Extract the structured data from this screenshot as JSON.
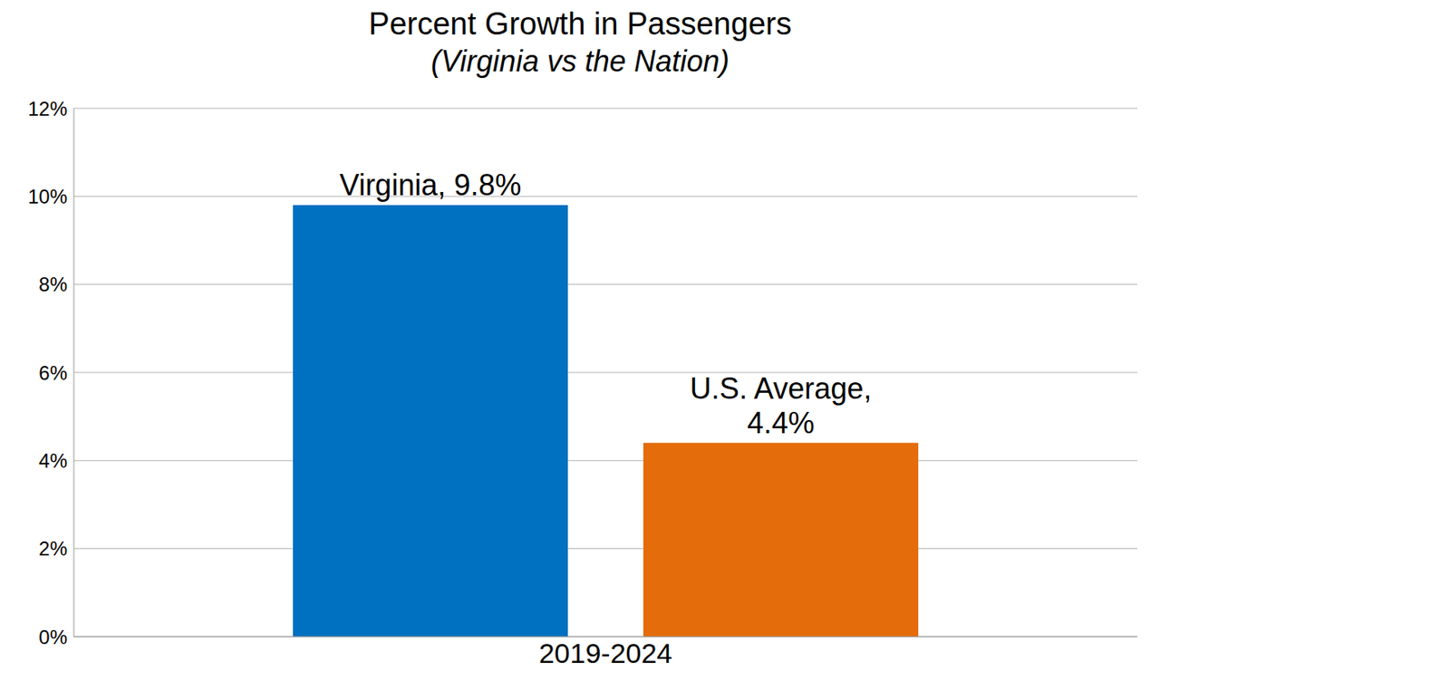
{
  "chart_data": {
    "type": "bar",
    "title": "Percent Growth in Passengers",
    "subtitle": "(Virginia vs the Nation)",
    "categories": [
      "2019-2024"
    ],
    "series": [
      {
        "name": "Virginia",
        "color": "#0070C0",
        "values": [
          9.8
        ],
        "value_labels": [
          "Virginia, 9.8%"
        ]
      },
      {
        "name": "U.S. Average",
        "color": "#E46C0A",
        "values": [
          4.4
        ],
        "value_labels": [
          "U.S. Average, 4.4%"
        ]
      }
    ],
    "ylim": [
      0,
      12
    ],
    "yticks": [
      {
        "value": 0,
        "label": "0%"
      },
      {
        "value": 2,
        "label": "2%"
      },
      {
        "value": 4,
        "label": "4%"
      },
      {
        "value": 6,
        "label": "6%"
      },
      {
        "value": 8,
        "label": "8%"
      },
      {
        "value": 10,
        "label": "10%"
      },
      {
        "value": 12,
        "label": "12%"
      }
    ],
    "grid": true,
    "data_labels": true
  }
}
